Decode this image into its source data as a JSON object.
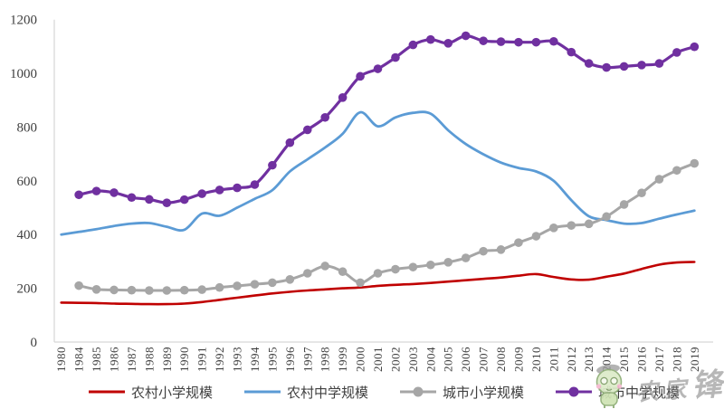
{
  "chart_data": {
    "type": "line",
    "title": "",
    "xlabel": "",
    "ylabel": "",
    "grid": false,
    "legend_position": "bottom",
    "ylim": [
      0,
      1200
    ],
    "yticks": [
      0,
      200,
      400,
      600,
      800,
      1000,
      1200
    ],
    "categories": [
      "1980",
      "1984",
      "1985",
      "1986",
      "1987",
      "1988",
      "1989",
      "1990",
      "1991",
      "1992",
      "1993",
      "1994",
      "1995",
      "1996",
      "1997",
      "1998",
      "1999",
      "2000",
      "2001",
      "2002",
      "2003",
      "2004",
      "2005",
      "2006",
      "2007",
      "2008",
      "2009",
      "2010",
      "2011",
      "2012",
      "2013",
      "2014",
      "2015",
      "2016",
      "2017",
      "2018",
      "2019"
    ],
    "series": [
      {
        "name": "农村小学规模",
        "color": "#C00000",
        "marker": false,
        "line_width": 2.6,
        "values": [
          147,
          146,
          145,
          143,
          142,
          141,
          141,
          143,
          149,
          157,
          165,
          173,
          181,
          187,
          192,
          196,
          200,
          203,
          209,
          213,
          216,
          220,
          225,
          230,
          235,
          240,
          247,
          253,
          242,
          233,
          232,
          243,
          255,
          272,
          288,
          296,
          298
        ]
      },
      {
        "name": "农村中学规模",
        "color": "#5B9BD5",
        "marker": false,
        "line_width": 2.8,
        "values": [
          400,
          410,
          420,
          432,
          441,
          443,
          429,
          418,
          478,
          470,
          500,
          533,
          565,
          635,
          680,
          724,
          775,
          855,
          803,
          836,
          853,
          850,
          788,
          737,
          699,
          668,
          648,
          635,
          600,
          528,
          468,
          454,
          441,
          443,
          459,
          475,
          489
        ]
      },
      {
        "name": "城市小学规模",
        "color": "#A6A6A6",
        "marker": true,
        "line_width": 3,
        "values": [
          null,
          210,
          196,
          194,
          193,
          192,
          192,
          193,
          195,
          203,
          209,
          215,
          221,
          233,
          256,
          283,
          262,
          221,
          256,
          271,
          279,
          287,
          297,
          313,
          338,
          344,
          370,
          394,
          425,
          434,
          440,
          467,
          512,
          555,
          606,
          639,
          665
        ]
      },
      {
        "name": "城市中学规模",
        "color": "#7030A0",
        "marker": true,
        "line_width": 3.2,
        "values": [
          null,
          548,
          562,
          556,
          538,
          531,
          518,
          530,
          552,
          566,
          574,
          586,
          658,
          742,
          790,
          836,
          910,
          989,
          1017,
          1059,
          1106,
          1126,
          1112,
          1140,
          1121,
          1118,
          1116,
          1116,
          1119,
          1079,
          1037,
          1022,
          1026,
          1031,
          1037,
          1078,
          1099
        ]
      }
    ]
  },
  "axis": {
    "tick_color": "#3f3f3f",
    "line_color": "#D6D6D6"
  },
  "watermark": {
    "text1": "农家",
    "text2": "锋"
  }
}
